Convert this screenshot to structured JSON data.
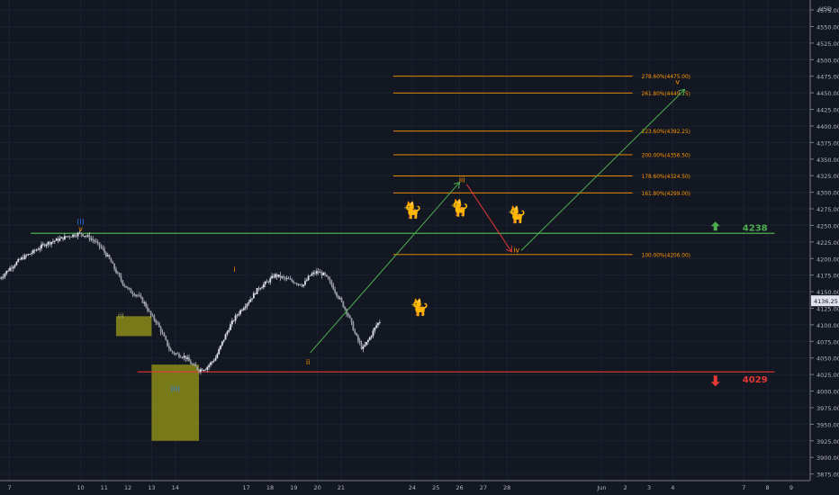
{
  "chart_data": {
    "type": "candlestick",
    "y_axis": {
      "currency": "USD",
      "ticks": [
        3875,
        3900,
        3925,
        3950,
        3975,
        4000,
        4025,
        4050,
        4075,
        4100,
        4125,
        4150,
        4175,
        4200,
        4225,
        4250,
        4275,
        4300,
        4325,
        4350,
        4375,
        4400,
        4425,
        4450,
        4475,
        4500,
        4525,
        4550,
        4575
      ],
      "tick_labels": [
        "3875.00",
        "3900.00",
        "3925.00",
        "3950.00",
        "3975.00",
        "4000.00",
        "4025.00",
        "4050.00",
        "4075.00",
        "4100.00",
        "4125.00",
        "4150.00",
        "4175.00",
        "4200.00",
        "4225.00",
        "4250.00",
        "4275.00",
        "4300.00",
        "4325.00",
        "4350.00",
        "4375.00",
        "4400.00",
        "4425.00",
        "4450.00",
        "4475.00",
        "4500.00",
        "4525.00",
        "4550.00",
        "4575.00"
      ],
      "ylim": [
        3865,
        4590
      ]
    },
    "x_axis": {
      "tick_labels": [
        "7",
        "10",
        "11",
        "12",
        "13",
        "14",
        "17",
        "18",
        "19",
        "20",
        "21",
        "24",
        "25",
        "26",
        "27",
        "28",
        "Jun",
        "2",
        "3",
        "4",
        "7",
        "8",
        "9"
      ],
      "tick_days": [
        7,
        10,
        11,
        12,
        13,
        14,
        17,
        18,
        19,
        20,
        21,
        24,
        25,
        26,
        27,
        28,
        32,
        33,
        34,
        35,
        38,
        39,
        40
      ],
      "xlim": [
        6.6,
        40.8
      ]
    },
    "last_price": {
      "value": 4136.25,
      "label": "4136.25"
    },
    "price_path": {
      "x": [
        6.6,
        7.0,
        7.5,
        8.0,
        8.5,
        9.0,
        9.5,
        10.0,
        10.3,
        10.6,
        10.9,
        11.2,
        11.5,
        11.8,
        12.1,
        12.4,
        12.7,
        13.0,
        13.2,
        13.4,
        13.6,
        13.8,
        14.1,
        14.4,
        14.7,
        15.0,
        15.3,
        15.7,
        16.0,
        16.3,
        16.6,
        16.9,
        17.2,
        17.5,
        17.9,
        18.2,
        18.6,
        19.0,
        19.4,
        19.7,
        20.0,
        20.3,
        20.6,
        21.0,
        21.3,
        21.6,
        21.9,
        22.2,
        22.5,
        22.7
      ],
      "y": [
        4170,
        4185,
        4200,
        4210,
        4222,
        4228,
        4234,
        4238,
        4233,
        4226,
        4215,
        4200,
        4180,
        4162,
        4150,
        4145,
        4132,
        4112,
        4105,
        4090,
        4075,
        4060,
        4055,
        4052,
        4040,
        4032,
        4035,
        4050,
        4075,
        4098,
        4115,
        4128,
        4140,
        4155,
        4165,
        4175,
        4170,
        4165,
        4160,
        4175,
        4180,
        4175,
        4160,
        4135,
        4115,
        4085,
        4063,
        4080,
        4100,
        4108
      ]
    },
    "fib_levels": [
      {
        "pct": "278.60%",
        "value": 4475.0,
        "label": "278.60%(4475.00)"
      },
      {
        "pct": "261.80%",
        "value": 4449.75,
        "label": "261.80%(4449.75)"
      },
      {
        "pct": "223.60%",
        "value": 4392.25,
        "label": "223.60%(4392.25)"
      },
      {
        "pct": "200.00%",
        "value": 4356.5,
        "label": "200.00%(4356.50)"
      },
      {
        "pct": "178.60%",
        "value": 4324.5,
        "label": "178.60%(4324.50)"
      },
      {
        "pct": "161.80%",
        "value": 4299.0,
        "label": "161.80%(4299.00)"
      },
      {
        "pct": "100.00%",
        "value": 4206.0,
        "label": "100.00%(4206.00)"
      }
    ],
    "levels": [
      {
        "value": 4238,
        "label": "4238",
        "color": "#4caf50",
        "arrow": "up"
      },
      {
        "value": 4029,
        "label": "4029",
        "color": "#e53935",
        "arrow": "down"
      }
    ],
    "wave_labels": [
      {
        "text": "(i)",
        "x": 10.0,
        "y": 4252,
        "color": "#2a7fff"
      },
      {
        "text": "v",
        "x": 10.0,
        "y": 4241,
        "color": "#ff9800"
      },
      {
        "text": "i",
        "x": 16.5,
        "y": 4180,
        "color": "#ff9800"
      },
      {
        "text": "ii",
        "x": 19.6,
        "y": 4040,
        "color": "#ff9800"
      },
      {
        "text": "iii",
        "x": 26.1,
        "y": 4315,
        "color": "#ff9800"
      },
      {
        "text": "iv",
        "x": 28.4,
        "y": 4209,
        "color": "#ff9800"
      },
      {
        "text": "v",
        "x": 35.2,
        "y": 4463,
        "color": "#ff9800"
      },
      {
        "text": "(ii)",
        "x": 14.0,
        "y": 4000,
        "color": "#2a7fff"
      },
      {
        "text": "iii",
        "x": 11.7,
        "y": 4110,
        "color": "#b5b35a"
      }
    ],
    "projection": [
      {
        "from": [
          19.7,
          4058
        ],
        "to": [
          26.0,
          4315
        ],
        "color": "#4caf50"
      },
      {
        "from": [
          26.3,
          4312
        ],
        "to": [
          28.2,
          4210
        ],
        "color": "#e53935"
      },
      {
        "from": [
          28.6,
          4212
        ],
        "to": [
          35.5,
          4455
        ],
        "color": "#4caf50"
      }
    ],
    "zones": [
      {
        "x": [
          11.5,
          13.0
        ],
        "y": [
          4083,
          4113
        ],
        "color": "#8b8b16"
      },
      {
        "x": [
          13.0,
          15.0
        ],
        "y": [
          3925,
          4040
        ],
        "color": "#8b8b16"
      }
    ],
    "emojis": [
      {
        "glyph": "🐈",
        "x": 24.0,
        "y": 4265
      },
      {
        "glyph": "🐈",
        "x": 26.0,
        "y": 4268
      },
      {
        "glyph": "🐈",
        "x": 28.4,
        "y": 4258
      },
      {
        "glyph": "🐈",
        "x": 24.3,
        "y": 4118
      }
    ]
  }
}
